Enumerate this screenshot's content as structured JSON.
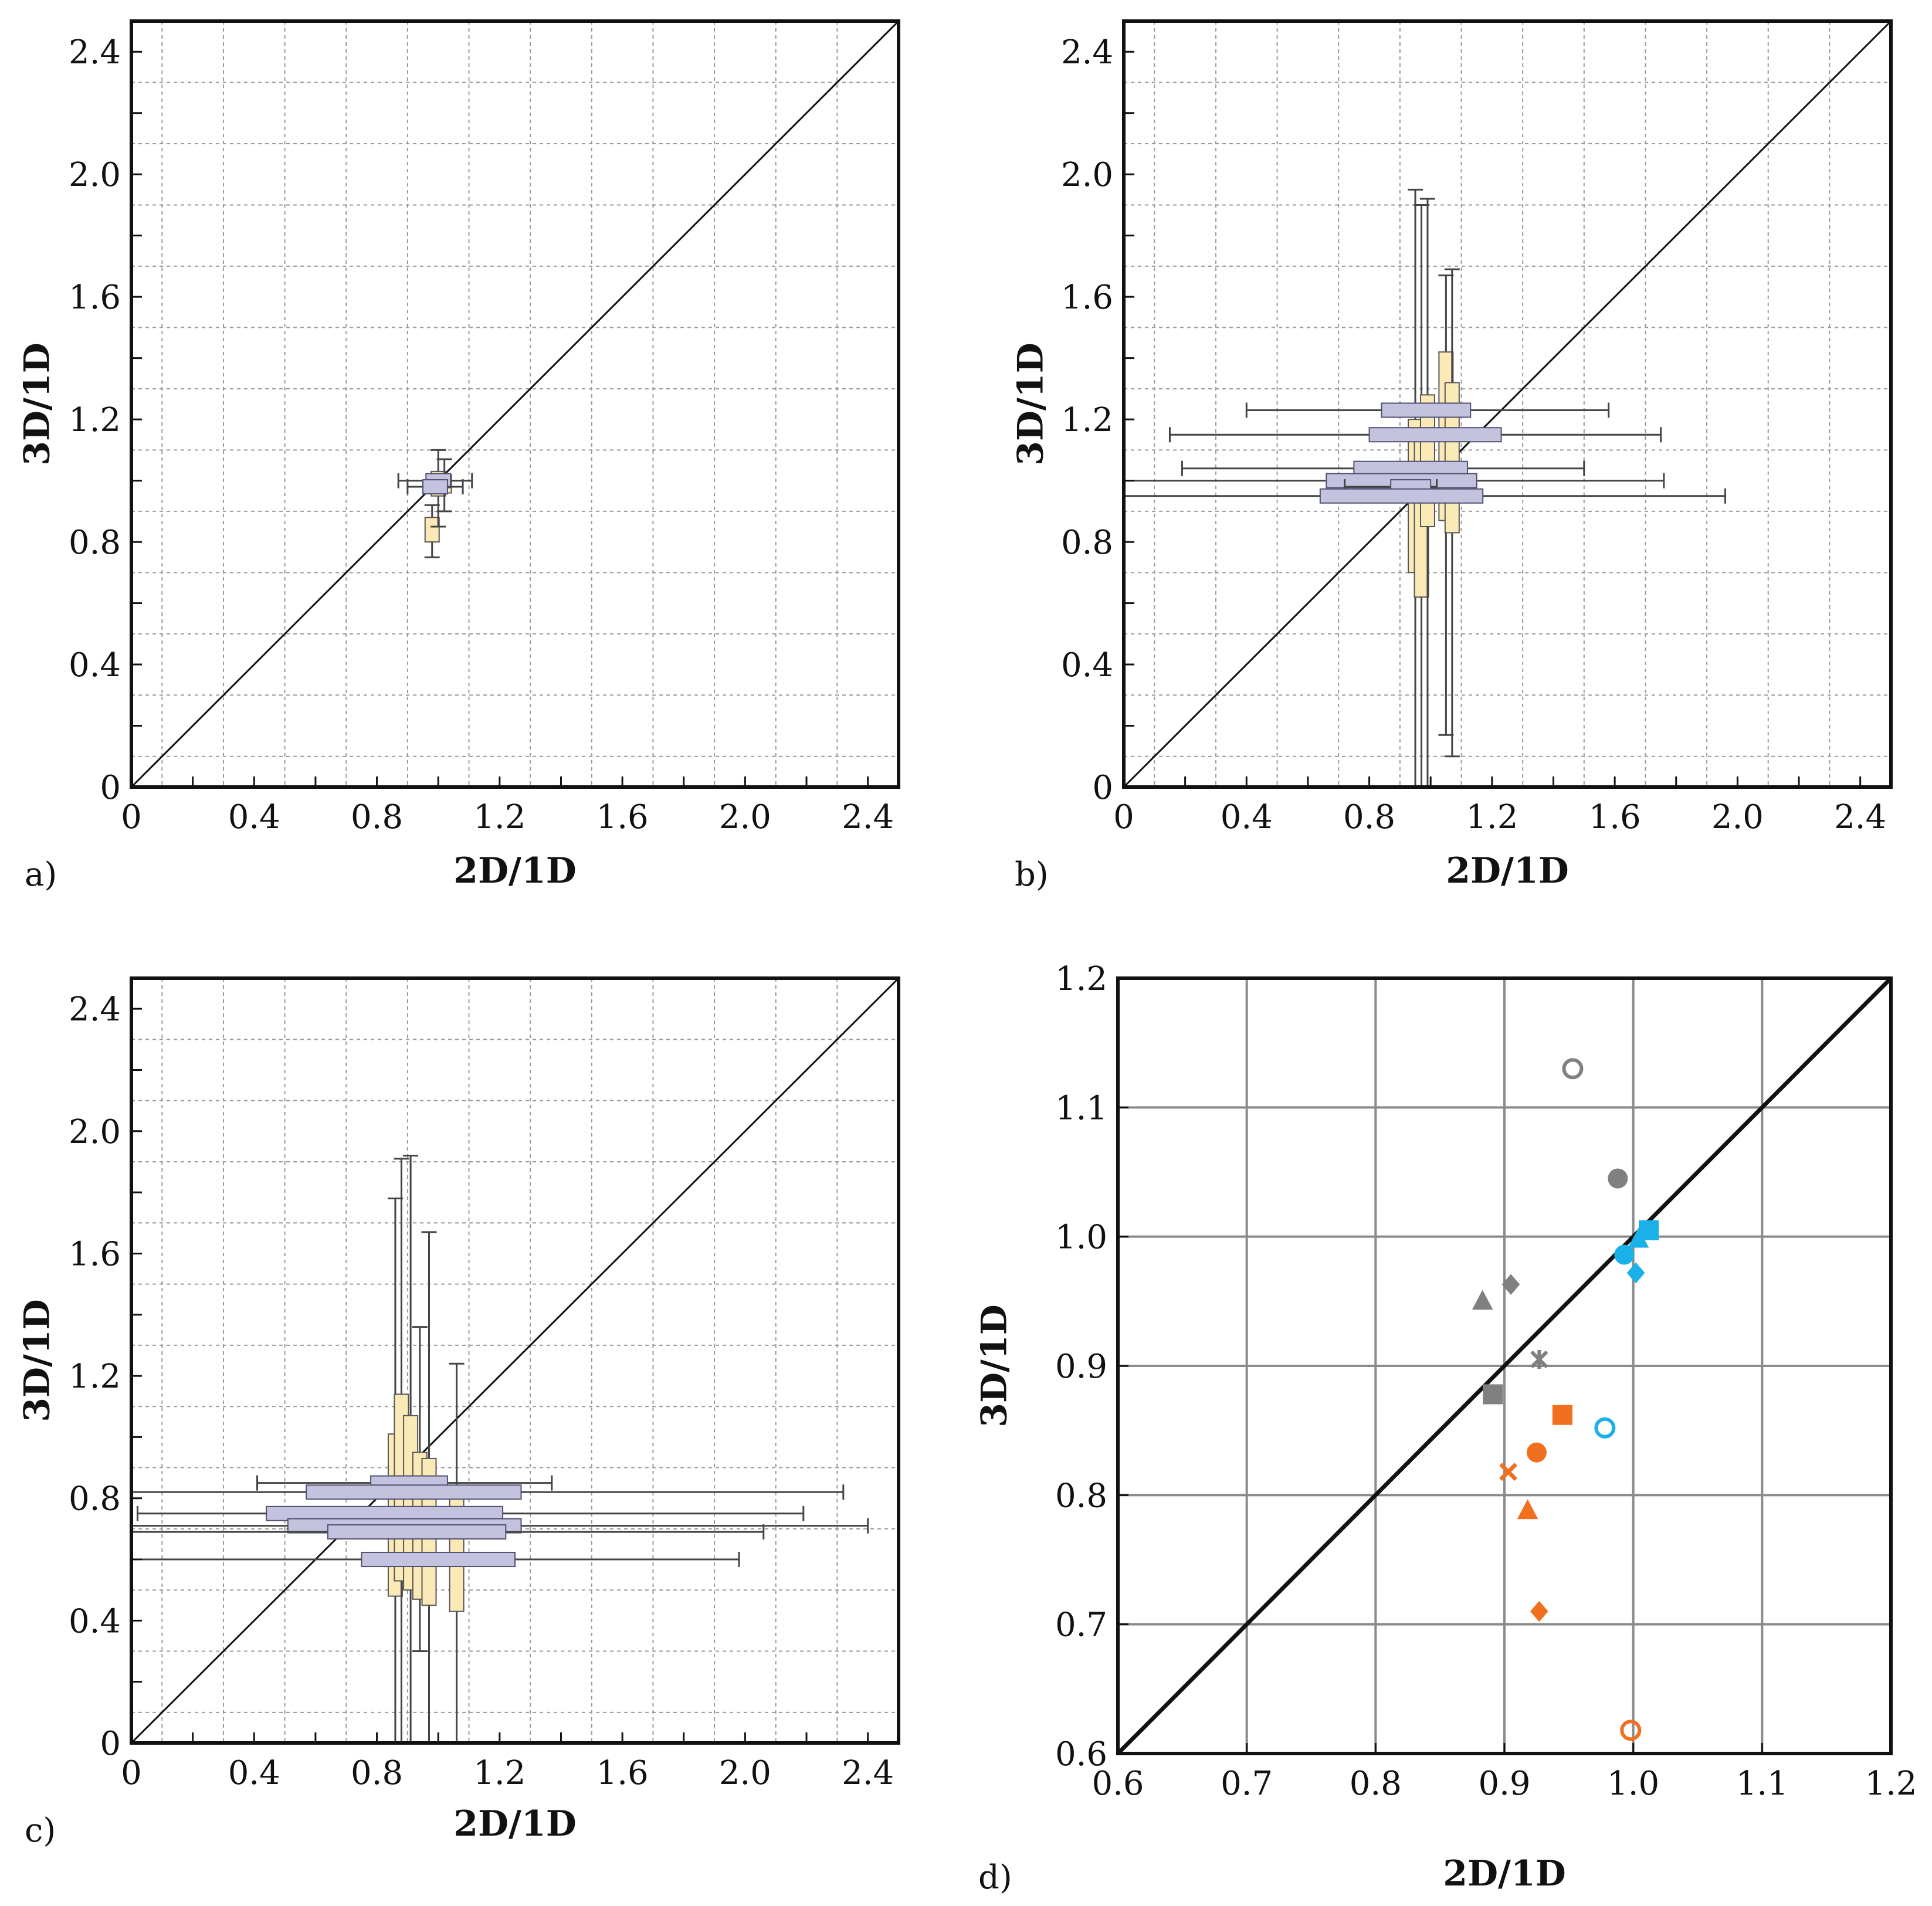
{
  "chart_data": [
    {
      "panel_label": "a)",
      "type": "boxplot-2d",
      "xlabel": "2D/1D",
      "ylabel": "3D/1D",
      "xlim": [
        0,
        2.5
      ],
      "ylim": [
        0,
        2.5
      ],
      "ticks": [
        0,
        0.4,
        0.8,
        1.2,
        1.6,
        2.0,
        2.4
      ],
      "tick_labels": [
        "0",
        "0.4",
        "0.8",
        "1.2",
        "1.6",
        "2.0",
        "2.4"
      ],
      "grid": true,
      "diagonal": "y = x",
      "x_boxes": [
        {
          "y": 1.0,
          "whisker": [
            0.87,
            1.11
          ],
          "box": [
            0.96,
            1.04
          ]
        },
        {
          "y": 0.98,
          "whisker": [
            0.9,
            1.08
          ],
          "box": [
            0.95,
            1.03
          ]
        }
      ],
      "y_boxes": [
        {
          "x": 0.98,
          "whisker": [
            0.75,
            0.92
          ],
          "box": [
            0.8,
            0.88
          ]
        },
        {
          "x": 1.0,
          "whisker": [
            0.85,
            1.1
          ],
          "box": [
            0.95,
            1.03
          ]
        },
        {
          "x": 1.02,
          "whisker": [
            0.9,
            1.07
          ],
          "box": [
            0.96,
            1.02
          ]
        }
      ]
    },
    {
      "panel_label": "b)",
      "type": "boxplot-2d",
      "xlabel": "2D/1D",
      "ylabel": "3D/1D",
      "xlim": [
        0,
        2.5
      ],
      "ylim": [
        0,
        2.5
      ],
      "ticks": [
        0,
        0.4,
        0.8,
        1.2,
        1.6,
        2.0,
        2.4
      ],
      "tick_labels": [
        "0",
        "0.4",
        "0.8",
        "1.2",
        "1.6",
        "2.0",
        "2.4"
      ],
      "grid": true,
      "diagonal": "y = x",
      "x_boxes": [
        {
          "y": 1.23,
          "whisker": [
            0.4,
            1.58
          ],
          "box": [
            0.84,
            1.13
          ]
        },
        {
          "y": 1.15,
          "whisker": [
            0.15,
            1.75
          ],
          "box": [
            0.8,
            1.23
          ]
        },
        {
          "y": 1.04,
          "whisker": [
            0.19,
            1.5
          ],
          "box": [
            0.75,
            1.12
          ]
        },
        {
          "y": 1.0,
          "whisker": [
            0.0,
            1.76
          ],
          "box": [
            0.66,
            1.15
          ]
        },
        {
          "y": 0.98,
          "whisker": [
            0.72,
            1.02
          ],
          "box": [
            0.87,
            1.0
          ]
        },
        {
          "y": 0.95,
          "whisker": [
            0.0,
            1.96
          ],
          "box": [
            0.64,
            1.17
          ]
        }
      ],
      "y_boxes": [
        {
          "x": 0.95,
          "whisker": [
            0.0,
            1.95
          ],
          "box": [
            0.7,
            1.2
          ]
        },
        {
          "x": 0.97,
          "whisker": [
            0.0,
            1.9
          ],
          "box": [
            0.62,
            1.15
          ]
        },
        {
          "x": 0.99,
          "whisker": [
            0.0,
            1.92
          ],
          "box": [
            0.85,
            1.28
          ]
        },
        {
          "x": 1.05,
          "whisker": [
            0.17,
            1.67
          ],
          "box": [
            0.87,
            1.42
          ]
        },
        {
          "x": 1.07,
          "whisker": [
            0.1,
            1.69
          ],
          "box": [
            0.83,
            1.32
          ]
        }
      ]
    },
    {
      "panel_label": "c)",
      "type": "boxplot-2d",
      "xlabel": "2D/1D",
      "ylabel": "3D/1D",
      "xlim": [
        0,
        2.5
      ],
      "ylim": [
        0,
        2.5
      ],
      "ticks": [
        0,
        0.4,
        0.8,
        1.2,
        1.6,
        2.0,
        2.4
      ],
      "tick_labels": [
        "0",
        "0.4",
        "0.8",
        "1.2",
        "1.6",
        "2.0",
        "2.4"
      ],
      "grid": true,
      "diagonal": "y = x",
      "x_boxes": [
        {
          "y": 0.85,
          "whisker": [
            0.41,
            1.37
          ],
          "box": [
            0.78,
            1.03
          ]
        },
        {
          "y": 0.82,
          "whisker": [
            0.0,
            2.32
          ],
          "box": [
            0.57,
            1.27
          ]
        },
        {
          "y": 0.75,
          "whisker": [
            0.02,
            2.19
          ],
          "box": [
            0.44,
            1.21
          ]
        },
        {
          "y": 0.71,
          "whisker": [
            0.0,
            2.4
          ],
          "box": [
            0.51,
            1.27
          ]
        },
        {
          "y": 0.69,
          "whisker": [
            0.0,
            2.06
          ],
          "box": [
            0.64,
            1.22
          ]
        },
        {
          "y": 0.6,
          "whisker": [
            0.0,
            1.98
          ],
          "box": [
            0.75,
            1.25
          ]
        }
      ],
      "y_boxes": [
        {
          "x": 0.86,
          "whisker": [
            0.0,
            1.78
          ],
          "box": [
            0.48,
            1.01
          ]
        },
        {
          "x": 0.88,
          "whisker": [
            0.0,
            1.91
          ],
          "box": [
            0.53,
            1.14
          ]
        },
        {
          "x": 0.91,
          "whisker": [
            0.0,
            1.92
          ],
          "box": [
            0.5,
            1.07
          ]
        },
        {
          "x": 0.94,
          "whisker": [
            0.3,
            1.36
          ],
          "box": [
            0.47,
            0.95
          ]
        },
        {
          "x": 0.97,
          "whisker": [
            0.0,
            1.67
          ],
          "box": [
            0.45,
            0.93
          ]
        },
        {
          "x": 1.06,
          "whisker": [
            0.0,
            1.24
          ],
          "box": [
            0.43,
            0.82
          ]
        }
      ]
    },
    {
      "panel_label": "d)",
      "type": "scatter",
      "xlabel": "2D/1D",
      "ylabel": "3D/1D",
      "xlim": [
        0.6,
        1.2
      ],
      "ylim": [
        0.6,
        1.2
      ],
      "ticks": [
        0.6,
        0.7,
        0.8,
        0.9,
        1.0,
        1.1,
        1.2
      ],
      "tick_labels": [
        "0.6",
        "0.7",
        "0.8",
        "0.9",
        "1.0",
        "1.1",
        "1.2"
      ],
      "grid": true,
      "diagonal": "y = x",
      "colors": {
        "grey": "#808080",
        "orange": "#f07020",
        "blue": "#1ab0e8"
      },
      "points": [
        {
          "x": 0.953,
          "y": 1.13,
          "marker": "circle-open",
          "color": "grey"
        },
        {
          "x": 0.988,
          "y": 1.045,
          "marker": "circle",
          "color": "grey"
        },
        {
          "x": 0.905,
          "y": 0.963,
          "marker": "diamond",
          "color": "grey"
        },
        {
          "x": 0.883,
          "y": 0.95,
          "marker": "triangle",
          "color": "grey"
        },
        {
          "x": 0.927,
          "y": 0.905,
          "marker": "asterisk",
          "color": "grey"
        },
        {
          "x": 0.891,
          "y": 0.878,
          "marker": "square",
          "color": "grey"
        },
        {
          "x": 0.945,
          "y": 0.862,
          "marker": "square",
          "color": "orange"
        },
        {
          "x": 0.925,
          "y": 0.833,
          "marker": "circle",
          "color": "orange"
        },
        {
          "x": 0.903,
          "y": 0.818,
          "marker": "x",
          "color": "orange"
        },
        {
          "x": 0.918,
          "y": 0.788,
          "marker": "triangle",
          "color": "orange"
        },
        {
          "x": 0.927,
          "y": 0.71,
          "marker": "diamond",
          "color": "orange"
        },
        {
          "x": 0.998,
          "y": 0.618,
          "marker": "circle-open",
          "color": "orange"
        },
        {
          "x": 1.012,
          "y": 1.005,
          "marker": "square",
          "color": "blue"
        },
        {
          "x": 1.004,
          "y": 0.998,
          "marker": "triangle",
          "color": "blue"
        },
        {
          "x": 0.993,
          "y": 0.986,
          "marker": "circle",
          "color": "blue"
        },
        {
          "x": 1.002,
          "y": 0.972,
          "marker": "diamond",
          "color": "blue"
        },
        {
          "x": 0.978,
          "y": 0.852,
          "marker": "circle-open",
          "color": "blue"
        }
      ]
    }
  ]
}
